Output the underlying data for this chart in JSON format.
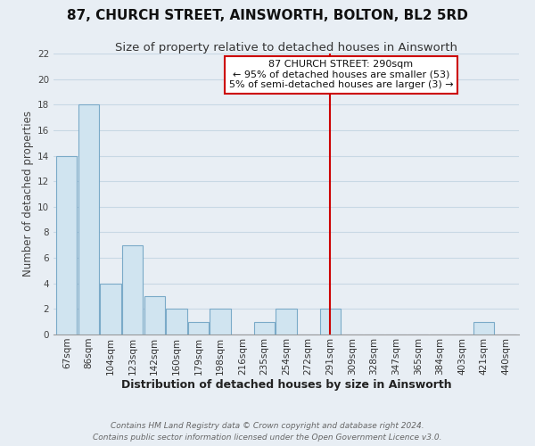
{
  "title": "87, CHURCH STREET, AINSWORTH, BOLTON, BL2 5RD",
  "subtitle": "Size of property relative to detached houses in Ainsworth",
  "xlabel": "Distribution of detached houses by size in Ainsworth",
  "ylabel": "Number of detached properties",
  "bin_labels": [
    "67sqm",
    "86sqm",
    "104sqm",
    "123sqm",
    "142sqm",
    "160sqm",
    "179sqm",
    "198sqm",
    "216sqm",
    "235sqm",
    "254sqm",
    "272sqm",
    "291sqm",
    "309sqm",
    "328sqm",
    "347sqm",
    "365sqm",
    "384sqm",
    "403sqm",
    "421sqm",
    "440sqm"
  ],
  "bar_values": [
    14,
    18,
    4,
    7,
    3,
    2,
    1,
    2,
    0,
    1,
    2,
    0,
    2,
    0,
    0,
    0,
    0,
    0,
    0,
    1,
    0
  ],
  "bar_color": "#d0e4f0",
  "bar_edge_color": "#7aaac8",
  "vline_x_index": 12,
  "vline_color": "#cc0000",
  "ylim": [
    0,
    22
  ],
  "yticks": [
    0,
    2,
    4,
    6,
    8,
    10,
    12,
    14,
    16,
    18,
    20,
    22
  ],
  "annotation_title": "87 CHURCH STREET: 290sqm",
  "annotation_line1": "← 95% of detached houses are smaller (53)",
  "annotation_line2": "5% of semi-detached houses are larger (3) →",
  "annotation_box_color": "#ffffff",
  "annotation_box_edge": "#cc0000",
  "footer_line1": "Contains HM Land Registry data © Crown copyright and database right 2024.",
  "footer_line2": "Contains public sector information licensed under the Open Government Licence v3.0.",
  "bg_color": "#e8eef4",
  "grid_color": "#c8d8e4",
  "title_fontsize": 11,
  "subtitle_fontsize": 9.5,
  "xlabel_fontsize": 9,
  "ylabel_fontsize": 8.5,
  "tick_fontsize": 7.5,
  "footer_fontsize": 6.5,
  "ann_fontsize": 8
}
